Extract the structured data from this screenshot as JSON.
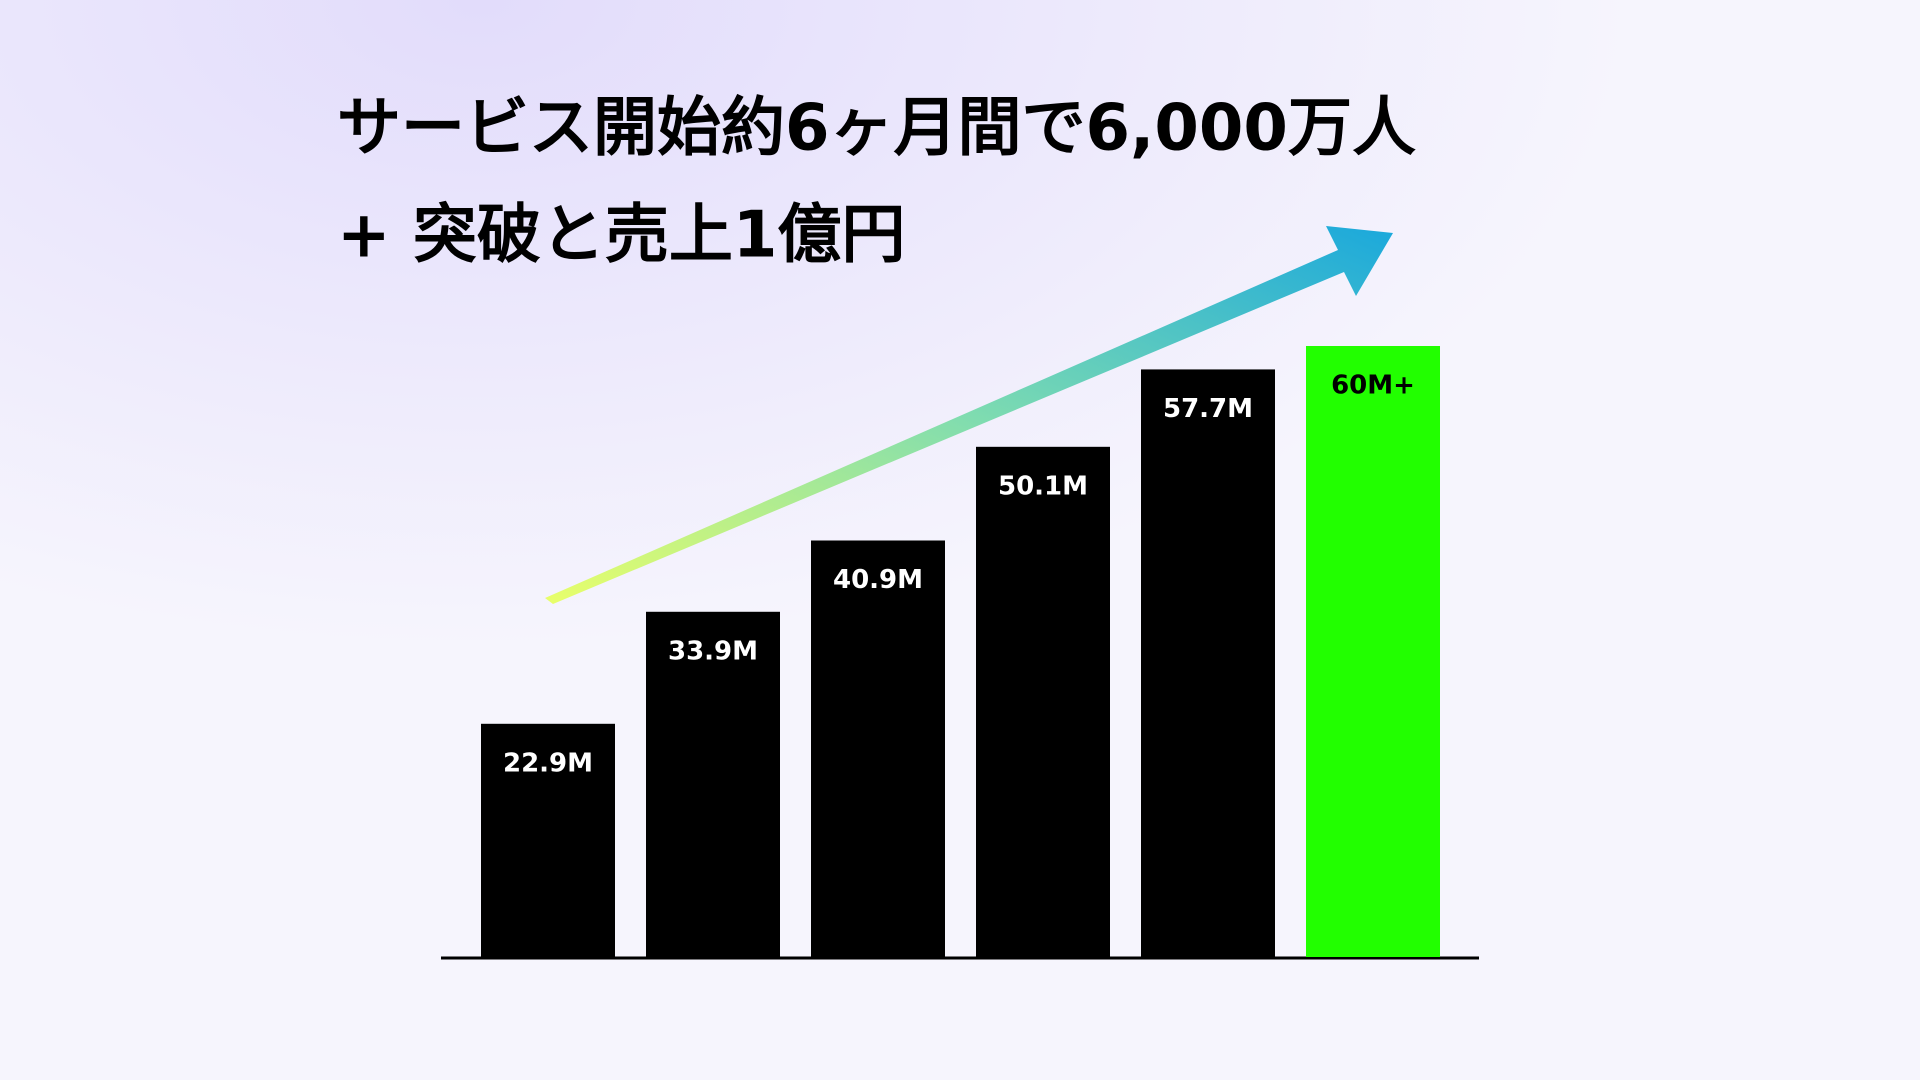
{
  "chart_data": {
    "type": "bar",
    "title": "サービス開始約6ヶ月間で6,000万人",
    "subtitle": "+ 突破と売上1億円",
    "categories": [
      null,
      null,
      null,
      null,
      null,
      null
    ],
    "values": [
      22.9,
      33.9,
      40.9,
      50.1,
      57.7,
      60
    ],
    "value_labels": [
      "22.9M",
      "33.9M",
      "40.9M",
      "50.1M",
      "57.7M",
      "60M+"
    ],
    "colors": [
      "#000000",
      "#000000",
      "#000000",
      "#000000",
      "#000000",
      "#22ff00"
    ],
    "label_colors": [
      "#ffffff",
      "#ffffff",
      "#ffffff",
      "#ffffff",
      "#ffffff",
      "#000000"
    ]
  }
}
